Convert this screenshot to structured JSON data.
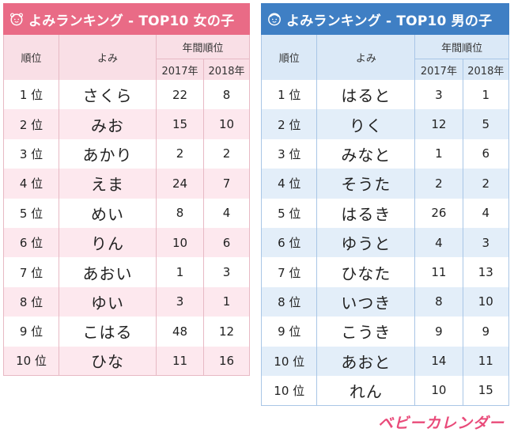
{
  "girls": {
    "title": "よみランキング - TOP10 女の子",
    "icon": "girl-face-icon",
    "header": {
      "rank": "順位",
      "yomi": "よみ",
      "annual": "年間順位",
      "y1": "2017年",
      "y2": "2018年"
    },
    "rows": [
      {
        "rank": "1 位",
        "name": "さくら",
        "y2017": "22",
        "y2018": "8"
      },
      {
        "rank": "2 位",
        "name": "みお",
        "y2017": "15",
        "y2018": "10"
      },
      {
        "rank": "3 位",
        "name": "あかり",
        "y2017": "2",
        "y2018": "2"
      },
      {
        "rank": "4 位",
        "name": "えま",
        "y2017": "24",
        "y2018": "7"
      },
      {
        "rank": "5 位",
        "name": "めい",
        "y2017": "8",
        "y2018": "4"
      },
      {
        "rank": "6 位",
        "name": "りん",
        "y2017": "10",
        "y2018": "6"
      },
      {
        "rank": "7 位",
        "name": "あおい",
        "y2017": "1",
        "y2018": "3"
      },
      {
        "rank": "8 位",
        "name": "ゆい",
        "y2017": "3",
        "y2018": "1"
      },
      {
        "rank": "9 位",
        "name": "こはる",
        "y2017": "48",
        "y2018": "12"
      },
      {
        "rank": "10 位",
        "name": "ひな",
        "y2017": "11",
        "y2018": "16"
      }
    ]
  },
  "boys": {
    "title": "よみランキング - TOP10 男の子",
    "icon": "boy-face-icon",
    "header": {
      "rank": "順位",
      "yomi": "よみ",
      "annual": "年間順位",
      "y1": "2017年",
      "y2": "2018年"
    },
    "rows": [
      {
        "rank": "1 位",
        "name": "はると",
        "y2017": "3",
        "y2018": "1"
      },
      {
        "rank": "2 位",
        "name": "りく",
        "y2017": "12",
        "y2018": "5"
      },
      {
        "rank": "3 位",
        "name": "みなと",
        "y2017": "1",
        "y2018": "6"
      },
      {
        "rank": "4 位",
        "name": "そうた",
        "y2017": "2",
        "y2018": "2"
      },
      {
        "rank": "5 位",
        "name": "はるき",
        "y2017": "26",
        "y2018": "4"
      },
      {
        "rank": "6 位",
        "name": "ゆうと",
        "y2017": "4",
        "y2018": "3"
      },
      {
        "rank": "7 位",
        "name": "ひなた",
        "y2017": "11",
        "y2018": "13"
      },
      {
        "rank": "8 位",
        "name": "いつき",
        "y2017": "8",
        "y2018": "10"
      },
      {
        "rank": "9 位",
        "name": "こうき",
        "y2017": "9",
        "y2018": "9"
      },
      {
        "rank": "10 位",
        "name": "あおと",
        "y2017": "14",
        "y2018": "11"
      },
      {
        "rank": "10 位",
        "name": "れん",
        "y2017": "10",
        "y2018": "15"
      }
    ]
  },
  "logo": "ベビーカレンダー",
  "colors": {
    "girl_accent": "#e96b86",
    "boy_accent": "#3f7fc4",
    "logo": "#e94b7a"
  }
}
